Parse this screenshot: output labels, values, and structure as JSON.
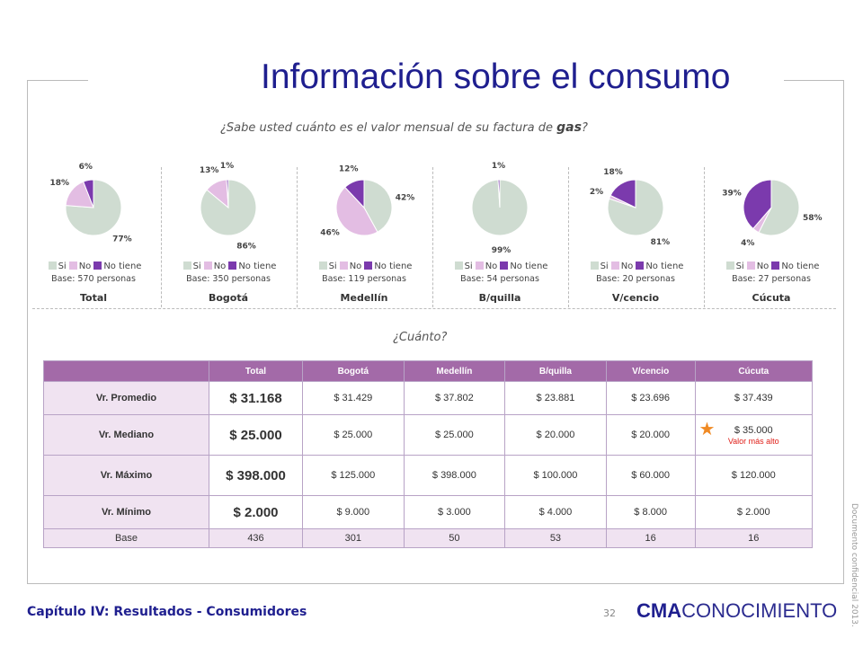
{
  "page": {
    "title": "Información sobre el consumo",
    "question_main": "¿Sabe usted cuánto es el valor mensual de su factura de ",
    "question_main_emph": "gas",
    "question_main_end": "?",
    "question_second": "¿Cuánto?",
    "footer": "Capítulo IV: Resultados - Consumidores",
    "page_number": "32",
    "logo_bold": "CMA",
    "logo_rest": "CONOCIMIENTO",
    "confidential": "Documento confidencial 2013."
  },
  "colors": {
    "si": "#cfdcd1",
    "no": "#e3bde3",
    "no_tiene": "#7b3aad",
    "header": "#a36aa8"
  },
  "legend_labels": [
    "Si",
    "No",
    "No tiene"
  ],
  "chart_data": [
    {
      "type": "pie",
      "region": "Total",
      "base": "Base: 570 personas",
      "categories": [
        "Si",
        "No",
        "No tiene"
      ],
      "values": [
        77,
        18,
        6
      ],
      "labels": [
        "77%",
        "18%",
        "6%"
      ]
    },
    {
      "type": "pie",
      "region": "Bogotá",
      "base": "Base: 350 personas",
      "categories": [
        "Si",
        "No",
        "No tiene"
      ],
      "values": [
        86,
        13,
        1
      ],
      "labels": [
        "86%",
        "13%",
        "1%"
      ]
    },
    {
      "type": "pie",
      "region": "Medellín",
      "base": "Base: 119 personas",
      "categories": [
        "Si",
        "No",
        "No tiene"
      ],
      "values": [
        42,
        46,
        12
      ],
      "labels": [
        "42%",
        "46%",
        "12%"
      ]
    },
    {
      "type": "pie",
      "region": "B/quilla",
      "base": "Base: 54 personas",
      "categories": [
        "Si",
        "No",
        "No tiene"
      ],
      "values": [
        99,
        0,
        1
      ],
      "labels": [
        "99%",
        "",
        "1%"
      ]
    },
    {
      "type": "pie",
      "region": "V/cencio",
      "base": "Base: 20 personas",
      "categories": [
        "Si",
        "No",
        "No tiene"
      ],
      "values": [
        81,
        2,
        18
      ],
      "labels": [
        "81%",
        "2%",
        "18%"
      ]
    },
    {
      "type": "pie",
      "region": "Cúcuta",
      "base": "Base: 27 personas",
      "categories": [
        "Si",
        "No",
        "No tiene"
      ],
      "values": [
        58,
        4,
        39
      ],
      "labels": [
        "58%",
        "4%",
        "39%"
      ]
    }
  ],
  "table": {
    "headers": [
      "Total",
      "Bogotá",
      "Medellín",
      "B/quilla",
      "V/cencio",
      "Cúcuta"
    ],
    "rows": [
      {
        "label": "Vr. Promedio",
        "values": [
          "$ 31.168",
          "$ 31.429",
          "$ 37.802",
          "$ 23.881",
          "$ 23.696",
          "$ 37.439"
        ]
      },
      {
        "label": "Vr. Mediano",
        "values": [
          "$ 25.000",
          "$ 25.000",
          "$ 25.000",
          "$ 20.000",
          "$ 20.000",
          "$ 35.000"
        ]
      },
      {
        "label": "Vr. Máximo",
        "values": [
          "$ 398.000",
          "$ 125.000",
          "$ 398.000",
          "$ 100.000",
          "$ 60.000",
          "$ 120.000"
        ]
      },
      {
        "label": "Vr. Mínimo",
        "values": [
          "$ 2.000",
          "$ 9.000",
          "$ 3.000",
          "$ 4.000",
          "$ 8.000",
          "$ 2.000"
        ]
      },
      {
        "label": "Base",
        "values": [
          "436",
          "301",
          "50",
          "53",
          "16",
          "16"
        ]
      }
    ],
    "flag_note": "Valor más alto"
  }
}
